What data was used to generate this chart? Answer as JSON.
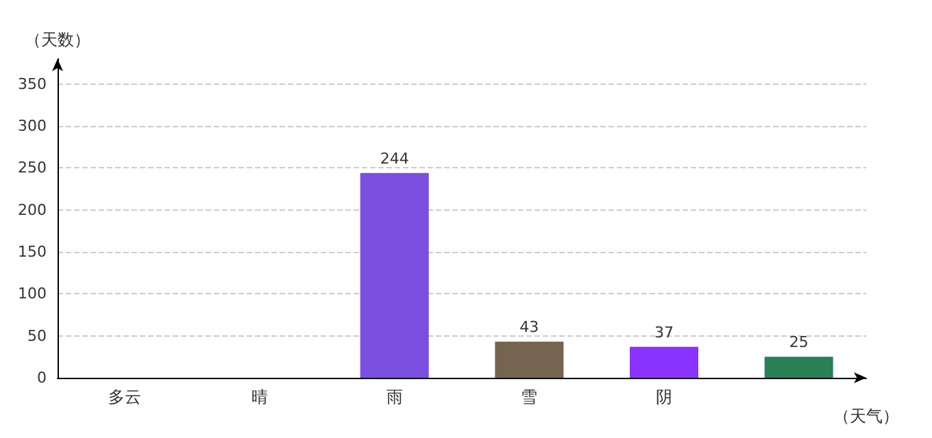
{
  "chart_data": {
    "type": "bar",
    "xlabel": "（天气）",
    "ylabel": "（天数）",
    "categories": [
      "多云",
      "晴",
      "雨",
      "雪",
      "阴",
      null
    ],
    "values": [
      null,
      null,
      244,
      43,
      37,
      25
    ],
    "colors": [
      "#a93226",
      "#7dcf0a",
      "#7a4fe0",
      "#756550",
      "#8a33ff",
      "#2a7f55"
    ],
    "data_labels": true,
    "ylim": [
      0,
      380
    ],
    "yticks": [
      0,
      50,
      100,
      150,
      200,
      250,
      300,
      350
    ],
    "grid": "y"
  }
}
